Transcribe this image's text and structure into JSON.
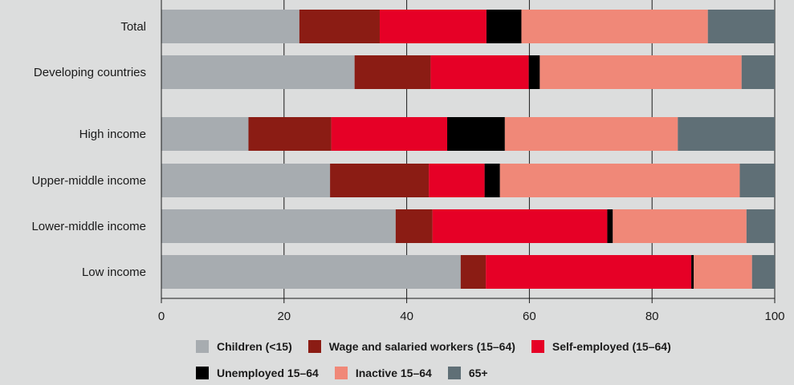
{
  "chart_data": {
    "type": "bar",
    "orientation": "horizontal",
    "stacked": true,
    "categories": [
      "Total",
      "Developing countries",
      "High income",
      "Upper-middle income",
      "Lower-middle income",
      "Low income"
    ],
    "series": [
      {
        "name": "Children (<15)",
        "color": "#a7acb0",
        "values": [
          22.5,
          31.5,
          14.2,
          27.5,
          38.2,
          48.8
        ]
      },
      {
        "name": "Wage and salaried workers (15–64)",
        "color": "#8b1c14",
        "values": [
          13.1,
          12.4,
          13.5,
          16.1,
          6.0,
          4.1
        ]
      },
      {
        "name": "Self-employed (15–64)",
        "color": "#e60026",
        "values": [
          17.4,
          16.0,
          18.9,
          9.1,
          28.5,
          33.5
        ]
      },
      {
        "name": "Unemployed 15–64",
        "color": "#000000",
        "values": [
          5.7,
          1.8,
          9.4,
          2.5,
          0.9,
          0.4
        ]
      },
      {
        "name": "Inactive 15–64",
        "color": "#f08878",
        "values": [
          30.4,
          32.9,
          28.2,
          39.1,
          21.8,
          9.5
        ]
      },
      {
        "name": "65+",
        "color": "#5f6f76",
        "values": [
          10.9,
          5.4,
          15.8,
          5.7,
          4.6,
          3.7
        ]
      }
    ],
    "xlim": [
      0,
      100
    ],
    "xticks": [
      0,
      20,
      40,
      60,
      80,
      100
    ],
    "grid": true,
    "legend_position": "bottom"
  }
}
